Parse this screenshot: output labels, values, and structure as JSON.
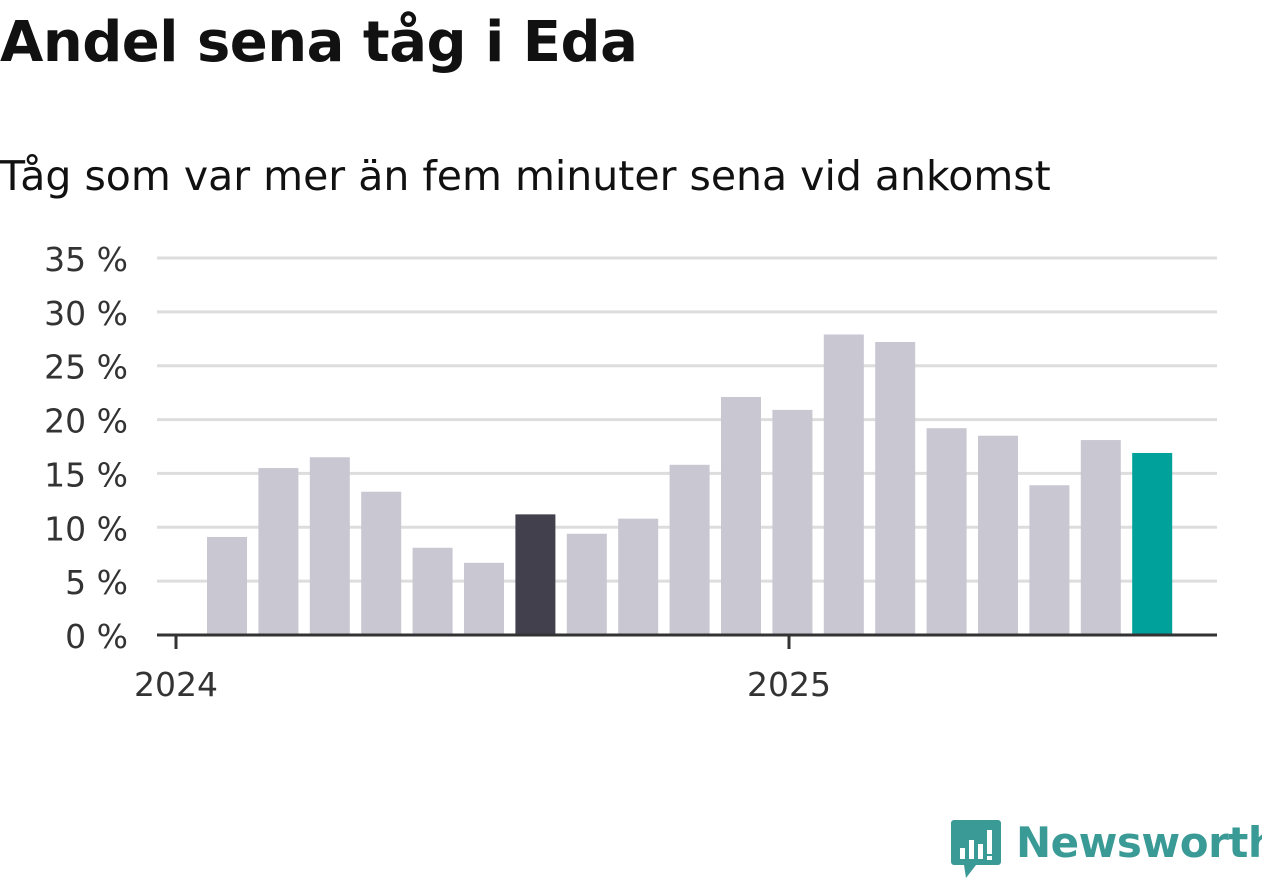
{
  "title": "Andel sena tåg i Eda",
  "subtitle": "Tåg som var mer än fem minuter sena vid ankomst",
  "brand": {
    "name": "Newsworthy",
    "icon": "newsworthy-logo-icon",
    "color": "#3a9a96"
  },
  "chart_data": {
    "type": "bar",
    "title": "Andel sena tåg i Eda",
    "subtitle": "Tåg som var mer än fem minuter sena vid ankomst",
    "xlabel": "",
    "ylabel": "",
    "unit": "%",
    "ylim": [
      0,
      35
    ],
    "yticks": [
      0,
      5,
      10,
      15,
      20,
      25,
      30,
      35
    ],
    "ytick_labels": [
      "0 %",
      "5 %",
      "10 %",
      "15 %",
      "20 %",
      "25 %",
      "30 %",
      "35 %"
    ],
    "grid": true,
    "x_ticks": [
      {
        "label": "2024",
        "index": 0
      },
      {
        "label": "2025",
        "index": 12
      }
    ],
    "series": [
      {
        "values": [
          9.1,
          15.5,
          16.5,
          13.3,
          8.1,
          6.7,
          11.2,
          9.4,
          10.8,
          15.8,
          22.1,
          20.9,
          27.9,
          27.2,
          19.2,
          18.5,
          13.9,
          18.1,
          16.9
        ]
      }
    ],
    "colors": {
      "default": "#c8c7d2",
      "highlight_dark": "#42404d",
      "highlight_latest": "#00a19a",
      "grid": "#dddddd",
      "axis": "#333333"
    },
    "highlight": {
      "dark_index": 6,
      "latest_index": 18
    }
  }
}
